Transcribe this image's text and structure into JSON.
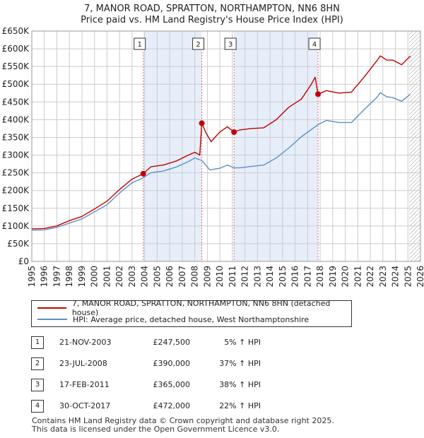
{
  "header": {
    "title_line1": "7, MANOR ROAD, SPRATTON, NORTHAMPTON, NN6 8HN",
    "title_line2": "Price paid vs. HM Land Registry's House Price Index (HPI)"
  },
  "colors": {
    "property": "#c00000",
    "hpi": "#5b8fc7",
    "shade": "#e6eefa",
    "grid": "#cccccc",
    "vline": "#e07070",
    "hatch": "#999999"
  },
  "legend": {
    "property_label": "7, MANOR ROAD, SPRATTON, NORTHAMPTON, NN6 8HN (detached house)",
    "hpi_label": "HPI: Average price, detached house, West Northamptonshire"
  },
  "sales": [
    {
      "num": "1",
      "date": "21-NOV-2003",
      "price": "£247,500",
      "hpi": "5% ↑ HPI"
    },
    {
      "num": "2",
      "date": "23-JUL-2008",
      "price": "£390,000",
      "hpi": "37% ↑ HPI"
    },
    {
      "num": "3",
      "date": "17-FEB-2011",
      "price": "£365,000",
      "hpi": "38% ↑ HPI"
    },
    {
      "num": "4",
      "date": "30-OCT-2017",
      "price": "£472,000",
      "hpi": "22% ↑ HPI"
    }
  ],
  "footer": {
    "line1": "Contains HM Land Registry data © Crown copyright and database right 2025.",
    "line2": "This data is licensed under the Open Government Licence v3.0."
  },
  "chart_data": {
    "type": "line",
    "title": "7, MANOR ROAD, SPRATTON, NORTHAMPTON, NN6 8HN",
    "subtitle": "Price paid vs. HM Land Registry's House Price Index (HPI)",
    "xlabel": "",
    "ylabel": "",
    "xlim": [
      1995,
      2026
    ],
    "ylim": [
      0,
      650000
    ],
    "y_ticks": [
      0,
      50000,
      100000,
      150000,
      200000,
      250000,
      300000,
      350000,
      400000,
      450000,
      500000,
      550000,
      600000,
      650000
    ],
    "y_tick_labels": [
      "£0",
      "£50K",
      "£100K",
      "£150K",
      "£200K",
      "£250K",
      "£300K",
      "£350K",
      "£400K",
      "£450K",
      "£500K",
      "£550K",
      "£600K",
      "£650K"
    ],
    "x_ticks": [
      1995,
      1996,
      1997,
      1998,
      1999,
      2000,
      2001,
      2002,
      2003,
      2004,
      2005,
      2006,
      2007,
      2008,
      2009,
      2010,
      2011,
      2012,
      2013,
      2014,
      2015,
      2016,
      2017,
      2018,
      2019,
      2020,
      2021,
      2022,
      2023,
      2024,
      2025,
      2026
    ],
    "grid": true,
    "shaded_periods": [
      [
        2003.89,
        2008.56
      ],
      [
        2011.13,
        2017.83
      ]
    ],
    "hatched_from": 2025.1,
    "sale_points": [
      {
        "label": "1",
        "x": 2003.89,
        "y": 247500
      },
      {
        "label": "2",
        "x": 2008.56,
        "y": 390000
      },
      {
        "label": "3",
        "x": 2011.13,
        "y": 365000
      },
      {
        "label": "4",
        "x": 2017.83,
        "y": 472000
      }
    ],
    "series": [
      {
        "name": "7, MANOR ROAD, SPRATTON, NORTHAMPTON, NN6 8HN (detached house)",
        "x": [
          1995,
          1996,
          1997,
          1998,
          1999,
          2000,
          2001,
          2002,
          2003,
          2003.89,
          2004.5,
          2005.5,
          2006.5,
          2007.5,
          2008.0,
          2008.4,
          2008.56,
          2008.9,
          2009.3,
          2010.0,
          2010.6,
          2011.13,
          2011.6,
          2012.5,
          2013.5,
          2014.5,
          2015.5,
          2016.5,
          2017.3,
          2017.6,
          2017.83,
          2018.5,
          2019.5,
          2020.5,
          2021.5,
          2022.5,
          2022.8,
          2023.3,
          2023.8,
          2024.5,
          2025.2
        ],
        "values": [
          92000,
          93000,
          100000,
          115000,
          127000,
          148000,
          170000,
          203000,
          232000,
          247500,
          267000,
          272000,
          283000,
          300000,
          308000,
          300000,
          390000,
          362000,
          338000,
          365000,
          380000,
          365000,
          371000,
          375000,
          377000,
          400000,
          435000,
          458000,
          500000,
          520000,
          472000,
          482000,
          475000,
          478000,
          520000,
          565000,
          580000,
          568000,
          568000,
          555000,
          580000
        ]
      },
      {
        "name": "HPI: Average price, detached house, West Northamptonshire",
        "x": [
          1995,
          1996,
          1997,
          1998,
          1999,
          2000,
          2001,
          2002,
          2003,
          2003.89,
          2004.5,
          2005.5,
          2006.5,
          2007.5,
          2008.0,
          2008.56,
          2009.2,
          2010.0,
          2010.6,
          2011.13,
          2011.6,
          2012.5,
          2013.5,
          2014.5,
          2015.5,
          2016.5,
          2017.83,
          2018.5,
          2019.5,
          2020.5,
          2021.5,
          2022.5,
          2022.8,
          2023.3,
          2023.8,
          2024.5,
          2025.2
        ],
        "values": [
          88000,
          89000,
          96000,
          108000,
          120000,
          140000,
          160000,
          193000,
          222000,
          236000,
          250000,
          255000,
          266000,
          282000,
          292000,
          285000,
          258000,
          263000,
          272000,
          264000,
          264000,
          268000,
          272000,
          292000,
          320000,
          352000,
          386000,
          398000,
          392000,
          392000,
          428000,
          462000,
          476000,
          465000,
          462000,
          452000,
          472000
        ]
      }
    ]
  }
}
